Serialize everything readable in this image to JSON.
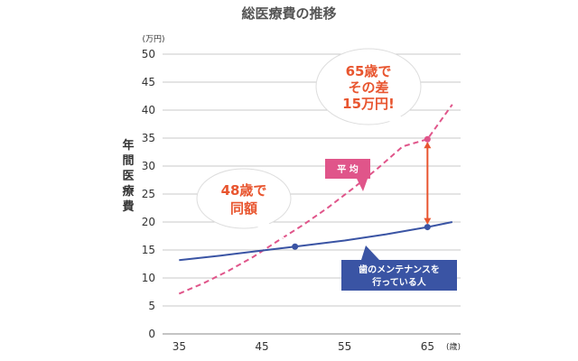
{
  "chart_data": {
    "type": "line",
    "title": "総医療費の推移",
    "ylabel": "年間医療費",
    "y_unit": "(万円)",
    "x_unit": "(歳)",
    "xlim": [
      33,
      69
    ],
    "ylim": [
      0,
      50
    ],
    "x_ticks": [
      35,
      45,
      55,
      65
    ],
    "y_ticks": [
      0,
      5,
      10,
      15,
      20,
      25,
      30,
      35,
      40,
      45,
      50
    ],
    "grid": true,
    "series": [
      {
        "name": "平 均",
        "style": "dashed",
        "color": "#e0558a",
        "x": [
          35,
          38,
          41,
          44,
          47,
          50,
          53,
          56,
          59,
          62,
          65,
          68
        ],
        "y": [
          7.2,
          9.1,
          11.3,
          13.8,
          16.7,
          19.5,
          22.6,
          26.0,
          29.6,
          33.5,
          34.8,
          41.0
        ]
      },
      {
        "name": "歯のメンテナンスを行っている人",
        "style": "solid",
        "color": "#3a54a4",
        "x": [
          35,
          40,
          45,
          49,
          55,
          60,
          65,
          68
        ],
        "y": [
          13.2,
          14.0,
          14.9,
          15.6,
          16.7,
          17.8,
          19.1,
          20.0
        ]
      }
    ],
    "markers": [
      {
        "series": 1,
        "x": 49,
        "y": 15.6,
        "color": "#3a54a4"
      },
      {
        "series": 1,
        "x": 65,
        "y": 19.1,
        "color": "#3a54a4"
      },
      {
        "series": 0,
        "x": 65,
        "y": 34.8,
        "color": "#e0558a"
      }
    ],
    "difference_arrow": {
      "x": 65,
      "y_from": 19.1,
      "y_to": 34.8,
      "color": "#e8552f"
    },
    "annotations": [
      {
        "id": "age48",
        "lines": [
          "48歳で",
          "同額"
        ]
      },
      {
        "id": "age65",
        "lines": [
          "65歳で",
          "その差",
          "15万円!"
        ]
      }
    ],
    "legend_labels": {
      "average": "平 均",
      "maintenance": [
        "歯のメンテナンスを",
        "行っている人"
      ]
    }
  }
}
